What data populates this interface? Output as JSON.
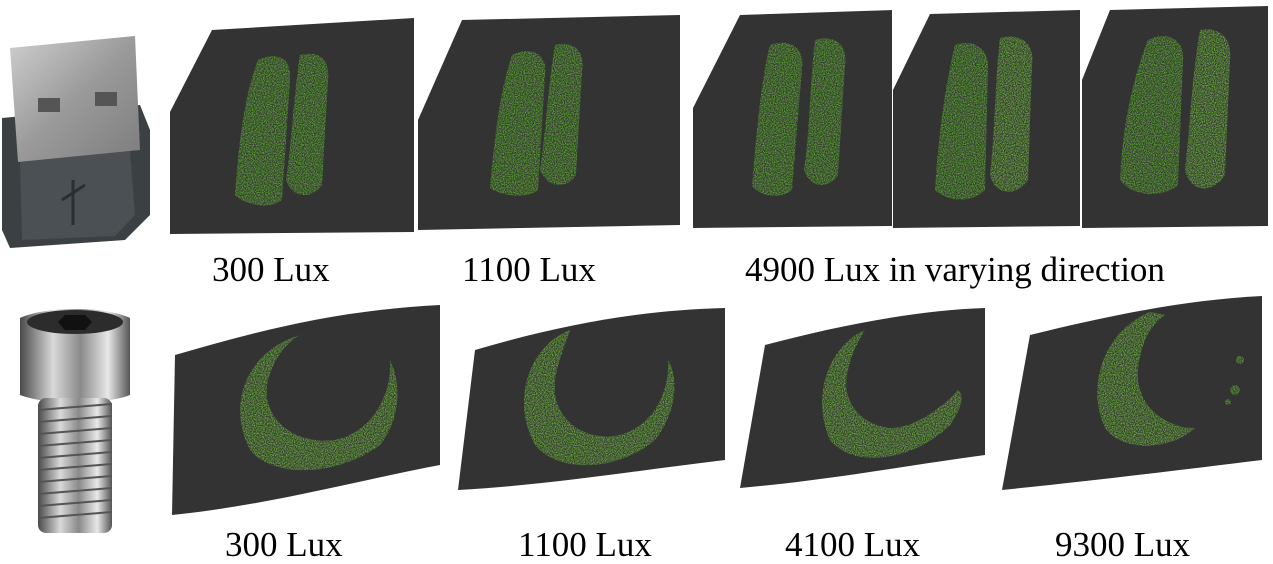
{
  "top_row": {
    "object": "usb-connector",
    "captions": [
      "300 Lux",
      "1100 Lux",
      "4900 Lux in varying direction"
    ]
  },
  "bottom_row": {
    "object": "hex-socket-screw",
    "captions": [
      "300 Lux",
      "1100 Lux",
      "4100 Lux",
      "9300 Lux"
    ]
  },
  "colors": {
    "surface": "#333333",
    "point_cloud": "#6ad630",
    "point_cloud_bright": "#9cf05c",
    "background": "#ffffff"
  }
}
